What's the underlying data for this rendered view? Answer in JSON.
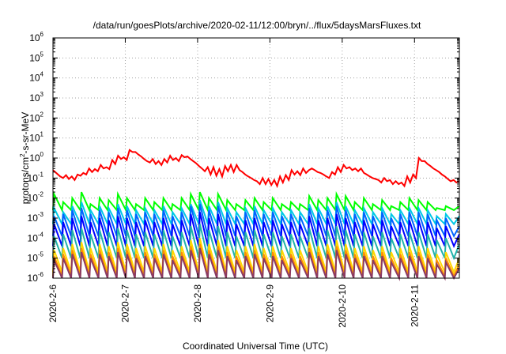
{
  "chart_data": {
    "type": "line",
    "title": "/data/run/goesPlots/archive/2020-02-11/12:00/bryn/../flux/5daysMarsFluxes.txt",
    "xlabel": "Coordinated Universal Time (UTC)",
    "ylabel": {
      "prefix": "protons/cm",
      "sup": "2",
      "suffix": "-s-sr-MeV"
    },
    "yscale": "log",
    "ylim": [
      1e-06,
      1000000.0
    ],
    "xlim": [
      0,
      5.62
    ],
    "grid": true,
    "x_ticks": [
      {
        "x": 0,
        "label": "2020-2-6"
      },
      {
        "x": 1,
        "label": "2020-2-7"
      },
      {
        "x": 2,
        "label": "2020-2-8"
      },
      {
        "x": 3,
        "label": "2020-2-9"
      },
      {
        "x": 4,
        "label": "2020-2-10"
      },
      {
        "x": 5,
        "label": "2020-2-11"
      }
    ],
    "y_ticks": [
      {
        "exp": -6,
        "label": "10",
        "sup": "-6"
      },
      {
        "exp": -5,
        "label": "10",
        "sup": "-5"
      },
      {
        "exp": -4,
        "label": "10",
        "sup": "-4"
      },
      {
        "exp": -3,
        "label": "10",
        "sup": "-3"
      },
      {
        "exp": -2,
        "label": "10",
        "sup": "-2"
      },
      {
        "exp": -1,
        "label": "10",
        "sup": "-1"
      },
      {
        "exp": 0,
        "label": "10",
        "sup": "0"
      },
      {
        "exp": 1,
        "label": "10",
        "sup": "1"
      },
      {
        "exp": 2,
        "label": "10",
        "sup": "2"
      },
      {
        "exp": 3,
        "label": "10",
        "sup": "3"
      },
      {
        "exp": 4,
        "label": "10",
        "sup": "4"
      },
      {
        "exp": 5,
        "label": "10",
        "sup": "5"
      },
      {
        "exp": 6,
        "label": "10",
        "sup": "6"
      }
    ],
    "series": [
      {
        "color": "#ff0000",
        "x": [
          0.0,
          0.1,
          0.14,
          0.18,
          0.22,
          0.26,
          0.3,
          0.34,
          0.38,
          0.42,
          0.46,
          0.5,
          0.54,
          0.58,
          0.62,
          0.66,
          0.7,
          0.74,
          0.78,
          0.82,
          0.86,
          0.9,
          0.94,
          0.98,
          1.02,
          1.06,
          1.1,
          1.14,
          1.18,
          1.22,
          1.26,
          1.3,
          1.34,
          1.38,
          1.42,
          1.46,
          1.5,
          1.54,
          1.58,
          1.62,
          1.66,
          1.7,
          1.74,
          1.78,
          1.82,
          1.86,
          1.9,
          1.94,
          1.98,
          2.02,
          2.06,
          2.1,
          2.14,
          2.18,
          2.22,
          2.26,
          2.3,
          2.34,
          2.38,
          2.42,
          2.46,
          2.5,
          2.54,
          2.58,
          2.62,
          2.66,
          2.7,
          2.74,
          2.78,
          2.82,
          2.86,
          2.9,
          2.94,
          2.98,
          3.02,
          3.06,
          3.1,
          3.14,
          3.18,
          3.22,
          3.26,
          3.3,
          3.34,
          3.38,
          3.42,
          3.46,
          3.5,
          3.54,
          3.58,
          3.62,
          3.66,
          3.7,
          3.74,
          3.78,
          3.82,
          3.86,
          3.9,
          3.94,
          3.98,
          4.02,
          4.06,
          4.1,
          4.14,
          4.18,
          4.22,
          4.26,
          4.3,
          4.34,
          4.38,
          4.42,
          4.46,
          4.5,
          4.54,
          4.58,
          4.62,
          4.66,
          4.7,
          4.74,
          4.78,
          4.82,
          4.86,
          4.9,
          4.94,
          4.98,
          5.02,
          5.06,
          5.1,
          5.14,
          5.18,
          5.22,
          5.26,
          5.3,
          5.34,
          5.38,
          5.42,
          5.46,
          5.5,
          5.54,
          5.58,
          5.62
        ],
        "y": [
          0.25,
          0.12,
          0.1,
          0.14,
          0.09,
          0.12,
          0.08,
          0.15,
          0.13,
          0.18,
          0.15,
          0.3,
          0.2,
          0.28,
          0.22,
          0.45,
          0.3,
          0.35,
          0.28,
          0.8,
          0.5,
          1.3,
          0.9,
          1.1,
          0.8,
          2.5,
          2.0,
          2.0,
          1.5,
          1.2,
          0.9,
          0.7,
          0.6,
          0.9,
          0.5,
          0.7,
          0.45,
          0.9,
          0.6,
          1.3,
          0.8,
          1.0,
          0.7,
          1.4,
          1.1,
          1.2,
          0.9,
          0.7,
          0.55,
          0.4,
          0.3,
          0.22,
          0.35,
          0.15,
          0.35,
          0.13,
          0.28,
          0.12,
          0.4,
          0.22,
          0.45,
          0.2,
          0.45,
          0.25,
          0.2,
          0.15,
          0.12,
          0.1,
          0.08,
          0.07,
          0.05,
          0.1,
          0.05,
          0.09,
          0.045,
          0.08,
          0.04,
          0.12,
          0.06,
          0.14,
          0.08,
          0.25,
          0.15,
          0.22,
          0.14,
          0.3,
          0.18,
          0.25,
          0.3,
          0.25,
          0.2,
          0.18,
          0.15,
          0.12,
          0.1,
          0.2,
          0.15,
          0.35,
          0.2,
          0.45,
          0.3,
          0.35,
          0.25,
          0.3,
          0.22,
          0.3,
          0.18,
          0.15,
          0.12,
          0.1,
          0.09,
          0.08,
          0.06,
          0.1,
          0.07,
          0.08,
          0.05,
          0.07,
          0.05,
          0.06,
          0.04,
          0.12,
          0.06,
          0.15,
          0.1,
          1.0,
          0.7,
          0.7,
          0.5,
          0.4,
          0.3,
          0.25,
          0.2,
          0.15,
          0.12,
          0.09,
          0.07,
          0.08,
          0.06,
          0.07
        ]
      }
    ],
    "sawtooth_series": [
      {
        "color": "#00ff00",
        "low": -2.6,
        "peaks": [
          -1.8,
          -2.2,
          -2.0,
          -1.7,
          -2.3,
          -2.0,
          -2.1,
          -1.8,
          -2.0,
          -2.3,
          -2.0,
          -2.2,
          -2.0,
          -2.3,
          -2.0,
          -1.8,
          -1.7,
          -2.0,
          -1.8,
          -2.1,
          -2.3,
          -2.1,
          -2.0,
          -2.2,
          -2.0,
          -2.3,
          -2.2,
          -2.3,
          -1.9,
          -2.1,
          -2.0,
          -1.8,
          -1.9,
          -2.2,
          -2.0,
          -2.3,
          -2.1,
          -2.4,
          -2.2,
          -2.0,
          -2.1,
          -2.2,
          -2.5,
          -2.4
        ],
        "tail": -2.4
      },
      {
        "color": "#00c8e6",
        "low": -3.3,
        "peaks": [
          -2.5,
          -2.7,
          -2.4,
          -2.2,
          -2.6,
          -2.4,
          -2.5,
          -2.3,
          -2.4,
          -2.6,
          -2.5,
          -2.6,
          -2.4,
          -2.7,
          -2.5,
          -2.3,
          -2.1,
          -2.4,
          -2.2,
          -2.5,
          -2.7,
          -2.5,
          -2.4,
          -2.6,
          -2.5,
          -2.7,
          -2.6,
          -2.7,
          -2.3,
          -2.5,
          -2.4,
          -2.2,
          -2.4,
          -2.6,
          -2.5,
          -2.7,
          -2.5,
          -2.8,
          -2.6,
          -2.5,
          -2.5,
          -2.6,
          -2.9,
          -2.8
        ],
        "tail": -2.9
      },
      {
        "color": "#0064ff",
        "low": -3.9,
        "peaks": [
          -2.9,
          -2.8,
          -2.6,
          -2.5,
          -2.8,
          -2.6,
          -2.7,
          -2.5,
          -2.6,
          -2.8,
          -2.7,
          -2.8,
          -2.6,
          -2.9,
          -2.7,
          -2.4,
          -2.3,
          -2.6,
          -2.4,
          -2.7,
          -2.9,
          -2.7,
          -2.6,
          -2.8,
          -2.7,
          -2.9,
          -2.8,
          -2.9,
          -2.5,
          -2.7,
          -2.6,
          -2.4,
          -2.6,
          -2.8,
          -2.7,
          -2.9,
          -2.7,
          -3.0,
          -2.8,
          -2.7,
          -2.7,
          -2.8,
          -3.1,
          -3.0
        ],
        "tail": -3.4
      },
      {
        "color": "#0000ff",
        "low": -4.4,
        "peaks": [
          -3.3,
          -3.2,
          -3.0,
          -2.9,
          -3.2,
          -3.0,
          -3.1,
          -2.9,
          -3.0,
          -3.2,
          -3.1,
          -3.2,
          -3.0,
          -3.3,
          -3.1,
          -2.8,
          -2.7,
          -3.0,
          -2.8,
          -3.1,
          -3.3,
          -3.1,
          -3.0,
          -3.2,
          -3.1,
          -3.3,
          -3.2,
          -3.3,
          -2.9,
          -3.1,
          -3.0,
          -2.8,
          -3.0,
          -3.2,
          -3.1,
          -3.3,
          -3.1,
          -3.4,
          -3.2,
          -3.1,
          -3.1,
          -3.2,
          -3.5,
          -3.4
        ],
        "tail": -3.8
      },
      {
        "color": "#20b2aa",
        "low": -5.0,
        "peaks": [
          -3.9,
          -3.8,
          -3.6,
          -3.5,
          -3.8,
          -3.6,
          -3.7,
          -3.5,
          -3.6,
          -3.8,
          -3.7,
          -3.8,
          -3.6,
          -3.9,
          -3.7,
          -3.4,
          -3.3,
          -3.6,
          -3.4,
          -3.7,
          -3.9,
          -3.7,
          -3.6,
          -3.8,
          -3.7,
          -3.9,
          -3.8,
          -3.9,
          -3.5,
          -3.7,
          -3.6,
          -3.4,
          -3.6,
          -3.8,
          -3.7,
          -3.9,
          -3.7,
          -4.0,
          -3.8,
          -3.7,
          -3.7,
          -3.8,
          -4.1,
          -4.0
        ],
        "tail": -4.3
      },
      {
        "color": "#ffd700",
        "low": -5.7,
        "peaks": [
          -4.6,
          -4.5,
          -4.3,
          -4.2,
          -4.5,
          -4.3,
          -4.4,
          -4.2,
          -4.3,
          -4.5,
          -4.4,
          -4.5,
          -4.3,
          -4.6,
          -4.4,
          -4.1,
          -4.0,
          -4.3,
          -4.1,
          -4.4,
          -4.6,
          -4.4,
          -4.3,
          -4.5,
          -4.4,
          -4.6,
          -4.5,
          -4.6,
          -4.2,
          -4.4,
          -4.3,
          -4.1,
          -4.3,
          -4.5,
          -4.4,
          -4.6,
          -4.4,
          -4.7,
          -4.5,
          -4.4,
          -4.4,
          -4.5,
          -4.8,
          -4.7
        ],
        "tail": -5.0
      },
      {
        "color": "#ff8c00",
        "low": -5.9,
        "peaks": [
          -4.9,
          -4.8,
          -4.6,
          -4.5,
          -4.8,
          -4.6,
          -4.7,
          -4.5,
          -4.6,
          -4.8,
          -4.7,
          -4.8,
          -4.6,
          -4.9,
          -4.7,
          -4.4,
          -4.3,
          -4.6,
          -4.4,
          -4.7,
          -4.9,
          -4.7,
          -4.6,
          -4.8,
          -4.7,
          -4.9,
          -4.8,
          -4.9,
          -4.5,
          -4.7,
          -4.6,
          -4.4,
          -4.6,
          -4.8,
          -4.7,
          -4.9,
          -4.7,
          -5.0,
          -4.8,
          -4.7,
          -4.7,
          -4.8,
          -5.1,
          -5.0
        ],
        "tail": -5.3
      },
      {
        "color": "#8b3a62",
        "low": -6.0,
        "peaks": [
          -5.1,
          -5.0,
          -4.8,
          -4.7,
          -5.0,
          -4.8,
          -4.9,
          -4.7,
          -4.8,
          -5.0,
          -4.9,
          -5.0,
          -4.8,
          -5.1,
          -4.9,
          -4.6,
          -4.5,
          -4.8,
          -4.6,
          -4.9,
          -5.1,
          -4.9,
          -4.8,
          -5.0,
          -4.9,
          -5.1,
          -5.0,
          -5.1,
          -4.7,
          -4.9,
          -4.8,
          -4.6,
          -4.8,
          -5.0,
          -4.9,
          -5.1,
          -4.9,
          -5.2,
          -5.0,
          -4.9,
          -4.9,
          -5.0,
          -5.3,
          -5.2
        ],
        "tail": -5.5
      }
    ]
  }
}
